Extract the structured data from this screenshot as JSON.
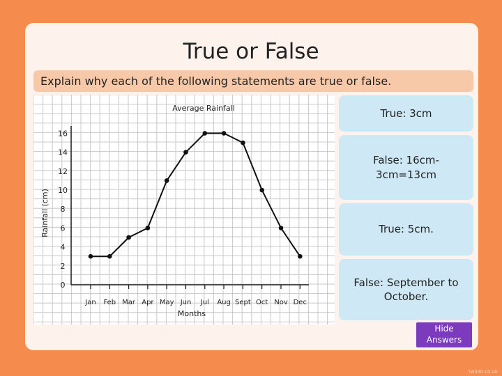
{
  "slide": {
    "title": "True or False",
    "instruction": "Explain why each of the following statements are true or false.",
    "answers": [
      "True: 3cm",
      "False: 16cm-3cm=13cm",
      "True: 5cm.",
      "False: September to October."
    ],
    "hide_button": "Hide Answers",
    "footer": "twinkl.co.uk"
  },
  "colors": {
    "background": "#f58b4c",
    "card": "#fdf2ec",
    "instruction_bar": "#f8c9a8",
    "answer_box": "#cfe8f6",
    "hide_button": "#7c3bbd"
  },
  "chart_data": {
    "type": "line",
    "title": "Average Rainfall",
    "xlabel": "Months",
    "ylabel": "Rainfall (cm)",
    "categories": [
      "Jan",
      "Feb",
      "Mar",
      "Apr",
      "May",
      "Jun",
      "Jul",
      "Aug",
      "Sept",
      "Oct",
      "Nov",
      "Dec"
    ],
    "values": [
      3,
      3,
      5,
      6,
      11,
      14,
      16,
      16,
      15,
      10,
      6,
      3
    ],
    "yticks": [
      0,
      2,
      4,
      6,
      8,
      10,
      12,
      14,
      16
    ],
    "ylim": [
      0,
      16
    ],
    "grid": true
  }
}
